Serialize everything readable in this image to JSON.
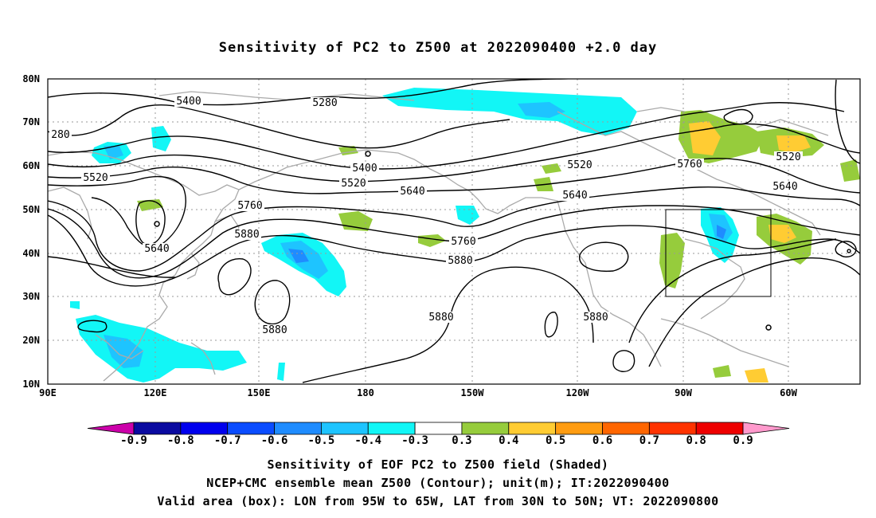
{
  "title": "Sensitivity of PC2 to Z500 at 2022090400 +2.0 day",
  "map": {
    "lon_range": [
      "90E",
      "65W"
    ],
    "lat_range": [
      "10N",
      "80N"
    ],
    "lat_ticks": [
      "80N",
      "70N",
      "60N",
      "50N",
      "40N",
      "30N",
      "20N",
      "10N"
    ],
    "lon_ticks": [
      "90E",
      "120E",
      "150E",
      "180",
      "150W",
      "120W",
      "90W",
      "60W"
    ],
    "contour_labels": [
      "280",
      "5400",
      "5280",
      "5520",
      "5400",
      "5520",
      "5640",
      "5520",
      "5760",
      "5640",
      "5520",
      "5760",
      "5640",
      "5760",
      "5880",
      "5880",
      "5640",
      "5880",
      "5880",
      "5880"
    ],
    "valid_box": {
      "lon": [
        "95W",
        "65W"
      ],
      "lat": [
        "30N",
        "50N"
      ]
    },
    "colors": {
      "coast": "#aaaaaa",
      "contour": "#000000",
      "grid": "#999999"
    }
  },
  "colorbar": {
    "labels": [
      "-0.9",
      "-0.8",
      "-0.7",
      "-0.6",
      "-0.5",
      "-0.4",
      "-0.3",
      "0.3",
      "0.4",
      "0.5",
      "0.6",
      "0.7",
      "0.8",
      "0.9"
    ],
    "colors": [
      "#cc00aa",
      "#0a0aa0",
      "#0000ee",
      "#0a4cff",
      "#1f8cff",
      "#1ec4ff",
      "#12f6f6",
      "#ffffff",
      "#96cc3c",
      "#ffcc33",
      "#ff9c11",
      "#ff6600",
      "#ff3300",
      "#ee0000",
      "#ff99cc"
    ]
  },
  "captions": [
    "Sensitivity of EOF PC2 to Z500 field (Shaded)",
    "NCEP+CMC ensemble mean Z500 (Contour); unit(m); IT:2022090400",
    "Valid area (box): LON from 95W to 65W, LAT from 30N to 50N; VT: 2022090800"
  ]
}
